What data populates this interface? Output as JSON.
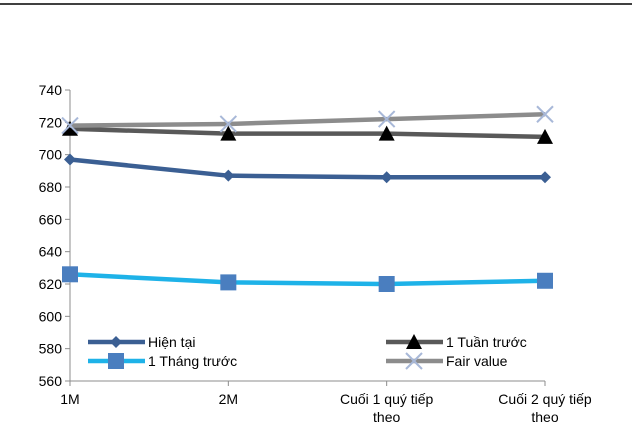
{
  "chart_data": {
    "type": "line",
    "categories": [
      "1M",
      "2M",
      "Cuối 1 quý tiếp theo",
      "Cuối 2 quý tiếp theo"
    ],
    "category_lines": [
      [
        "1M"
      ],
      [
        "2M"
      ],
      [
        "Cuối 1 quý tiếp",
        "theo"
      ],
      [
        "Cuối 2 quý tiếp",
        "theo"
      ]
    ],
    "ylim": [
      560,
      740
    ],
    "yticks": [
      560,
      580,
      600,
      620,
      640,
      660,
      680,
      700,
      720,
      740
    ],
    "grid": false,
    "legend": "bottom",
    "series": [
      {
        "name": "Hiện tại",
        "values": [
          697,
          687,
          686,
          686
        ],
        "color": "#3B5F93",
        "marker": "diamond"
      },
      {
        "name": "1 Tuần trước",
        "values": [
          716,
          713,
          713,
          711
        ],
        "color": "#595959",
        "marker": "triangle"
      },
      {
        "name": "1 Tháng trước",
        "values": [
          626,
          621,
          620,
          622
        ],
        "color": "#1EB2E8",
        "marker": "square"
      },
      {
        "name": "Fair value",
        "values": [
          718,
          719,
          722,
          725
        ],
        "color": "#8C8C8C",
        "marker": "x"
      }
    ]
  }
}
